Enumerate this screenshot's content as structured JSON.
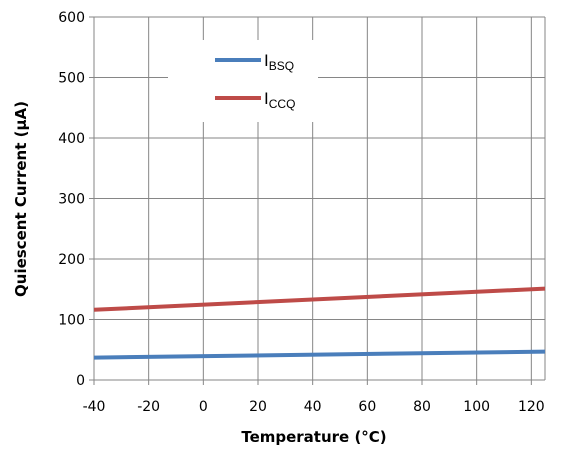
{
  "chart_data": {
    "type": "line",
    "xlabel": "Temperature (°C)",
    "ylabel": "Quiescent Current (µA)",
    "xlim": [
      -40,
      125
    ],
    "ylim": [
      0,
      600
    ],
    "xticks": [
      -40,
      -20,
      0,
      20,
      40,
      60,
      80,
      100,
      120
    ],
    "yticks": [
      0,
      100,
      200,
      300,
      400,
      500,
      600
    ],
    "grid": true,
    "legend_position": "upper-center",
    "series": [
      {
        "name": "I",
        "subscript": "BSQ",
        "color": "#4a7ebb",
        "x": [
          -40,
          125
        ],
        "y": [
          37,
          47
        ]
      },
      {
        "name": "I",
        "subscript": "CCQ",
        "color": "#be4b48",
        "x": [
          -40,
          125
        ],
        "y": [
          116,
          151
        ]
      }
    ]
  }
}
